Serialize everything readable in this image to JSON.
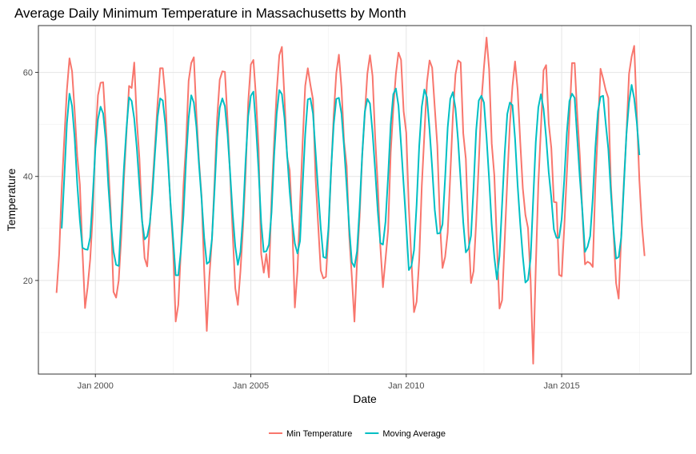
{
  "chart_data": {
    "type": "line",
    "title": "Average Daily Minimum Temperature in Massachusetts by Month",
    "xlabel": "Date",
    "ylabel": "Temperature",
    "x_start": "1998-10",
    "x_interval": "month",
    "xlim": [
      "1998-03",
      "2019-03"
    ],
    "ylim": [
      2,
      69
    ],
    "x_ticks": [
      {
        "date": "2000-01",
        "label": "Jan 2000"
      },
      {
        "date": "2005-01",
        "label": "Jan 2005"
      },
      {
        "date": "2010-01",
        "label": "Jan 2010"
      },
      {
        "date": "2015-01",
        "label": "Jan 2015"
      }
    ],
    "y_ticks": [
      20,
      40,
      60
    ],
    "grid": true,
    "legend_position": "bottom",
    "series": [
      {
        "name": "Min Temperature",
        "color": "#F8766D",
        "values": [
          17.6,
          24.9,
          37.6,
          47.3,
          56.6,
          62.7,
          60.2,
          52.5,
          43.9,
          38.5,
          25.8,
          14.7,
          18.7,
          24.1,
          32.8,
          47.3,
          55.6,
          58.0,
          58.1,
          49.7,
          42.0,
          32.3,
          17.8,
          16.7,
          20.0,
          28.5,
          39.4,
          48.4,
          57.4,
          57.0,
          61.9,
          50.7,
          43.4,
          32.0,
          24.3,
          22.7,
          30.4,
          38.1,
          45.8,
          54.0,
          60.8,
          60.8,
          55.4,
          44.2,
          34.5,
          26.2,
          12.1,
          15.3,
          25.8,
          38.2,
          46.3,
          58.4,
          61.8,
          62.9,
          52.0,
          43.0,
          36.1,
          21.9,
          10.3,
          20.8,
          27.9,
          39.0,
          51.2,
          58.6,
          60.2,
          60.1,
          51.0,
          40.4,
          29.1,
          18.5,
          15.3,
          21.8,
          30.3,
          40.8,
          54.3,
          61.5,
          62.4,
          55.2,
          45.4,
          25.1,
          21.5,
          25.1,
          20.6,
          35.8,
          46.7,
          56.4,
          63.3,
          64.9,
          55.0,
          43.8,
          41.2,
          30.8,
          14.8,
          21.8,
          34.3,
          46.5,
          57.4,
          60.8,
          57.6,
          54.8,
          39.5,
          30.7,
          21.9,
          20.4,
          20.7,
          29.4,
          41.1,
          51.8,
          59.9,
          63.4,
          57.0,
          46.6,
          42.0,
          28.6,
          20.7,
          12.1,
          23.5,
          32.2,
          44.0,
          51.9,
          59.8,
          63.3,
          59.3,
          47.5,
          38.4,
          26.6,
          18.7,
          24.1,
          29.7,
          44.7,
          53.0,
          59.7,
          63.8,
          62.4,
          52.5,
          48.4,
          34.0,
          23.9,
          13.9,
          15.9,
          23.9,
          38.2,
          48.1,
          58.1,
          62.3,
          60.9,
          53.3,
          45.9,
          31.2,
          22.4,
          24.5,
          29.2,
          40.3,
          51.6,
          59.6,
          62.3,
          61.9,
          48.3,
          43.4,
          29.5,
          19.5,
          21.8,
          31.4,
          42.6,
          54.4,
          61.0,
          66.7,
          60.6,
          46.3,
          40.2,
          27.1,
          14.6,
          16.2,
          27.6,
          39.3,
          50.0,
          57.3,
          62.1,
          56.7,
          46.7,
          37.7,
          32.6,
          30.1,
          20.1,
          4.0,
          22.4,
          38.6,
          49.4,
          60.4,
          61.4,
          50.2,
          45.5,
          35.1,
          35.0,
          21.1,
          20.8,
          30.2,
          40.6,
          51.1,
          61.8,
          61.8,
          52.1,
          44.0,
          32.9,
          23.1,
          23.6,
          23.3,
          22.6,
          38.5,
          49.3,
          60.7,
          58.8,
          56.6,
          55.1,
          38.5,
          29.5,
          19.5,
          16.5,
          28.7,
          38.9,
          48.1,
          59.7,
          63.0,
          65.1,
          52.2,
          39.2,
          30.5,
          24.7
        ]
      },
      {
        "name": "Moving Average",
        "color": "#00BFC4",
        "values": [
          null,
          null,
          30.0,
          39.8,
          50.2,
          55.9,
          53.5,
          47.4,
          38.5,
          31.6,
          26.3,
          26.0,
          25.9,
          28.3,
          36.3,
          45.4,
          51.0,
          53.4,
          52.1,
          47.0,
          38.2,
          31.0,
          25.6,
          23.0,
          22.8,
          31.9,
          41.5,
          49.2,
          55.2,
          54.5,
          51.1,
          45.4,
          38.2,
          31.5,
          27.9,
          28.5,
          31.0,
          36.6,
          44.4,
          51.4,
          55.0,
          54.6,
          50.1,
          43.1,
          34.8,
          28.0,
          21.0,
          21.0,
          25.7,
          32.6,
          43.1,
          51.2,
          55.6,
          54.2,
          49.5,
          42.2,
          35.6,
          28.2,
          23.2,
          23.6,
          28.0,
          37.5,
          47.5,
          53.2,
          55.0,
          53.5,
          48.2,
          40.8,
          32.8,
          26.5,
          23.0,
          25.5,
          32.5,
          43.1,
          51.6,
          55.5,
          56.3,
          49.6,
          41.1,
          31.1,
          25.5,
          25.6,
          26.9,
          33.1,
          44.0,
          52.1,
          56.6,
          55.8,
          51.2,
          44.3,
          37.1,
          31.4,
          27.1,
          25.2,
          27.6,
          38.2,
          48.1,
          54.8,
          55.0,
          52.1,
          44.7,
          37.2,
          30.1,
          24.5,
          24.3,
          30.2,
          41.4,
          50.0,
          54.9,
          55.1,
          52.1,
          45.6,
          38.1,
          30.0,
          23.5,
          22.6,
          25.6,
          34.0,
          44.2,
          52.4,
          54.9,
          54.0,
          48.4,
          41.2,
          33.4,
          27.2,
          26.9,
          31.3,
          40.0,
          50.0,
          55.8,
          56.9,
          53.6,
          46.1,
          38.4,
          30.5,
          22.0,
          22.8,
          25.8,
          34.5,
          45.8,
          53.4,
          56.7,
          55.2,
          49.0,
          41.7,
          33.6,
          29.0,
          29.1,
          30.8,
          39.6,
          49.4,
          54.9,
          56.2,
          53.1,
          47.0,
          39.2,
          31.2,
          25.4,
          26.1,
          28.6,
          38.0,
          48.9,
          54.6,
          55.5,
          54.2,
          47.5,
          39.4,
          30.6,
          24.5,
          20.2,
          24.7,
          34.6,
          44.4,
          52.0,
          54.2,
          53.7,
          47.3,
          38.3,
          30.9,
          24.6,
          19.6,
          20.1,
          24.2,
          35.5,
          46.6,
          53.3,
          55.8,
          53.0,
          47.5,
          40.8,
          35.9,
          29.8,
          28.2,
          28.2,
          31.8,
          39.4,
          48.4,
          54.5,
          55.9,
          55.1,
          47.4,
          39.8,
          33.3,
          25.5,
          26.5,
          28.5,
          35.8,
          45.5,
          52.5,
          55.3,
          55.5,
          50.2,
          45.3,
          36.9,
          29.8,
          24.2,
          24.5,
          28.3,
          38.1,
          48.2,
          54.2,
          57.6,
          55.0,
          50.4,
          44.1
        ]
      }
    ]
  }
}
